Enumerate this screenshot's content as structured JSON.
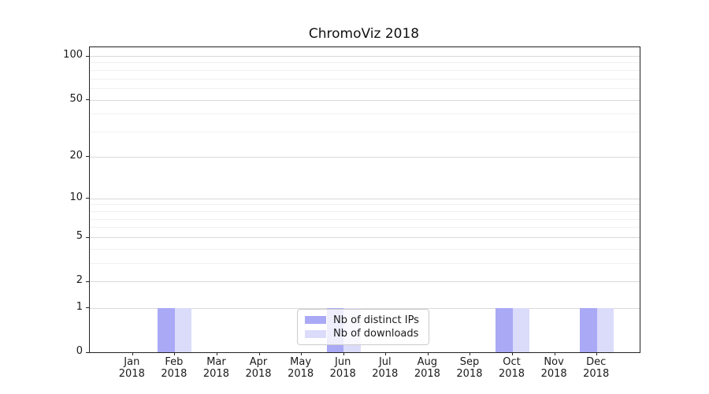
{
  "chart_data": {
    "type": "bar",
    "title": "ChromoViz 2018",
    "yscale": "log1p",
    "categories": [
      "Jan",
      "Feb",
      "Mar",
      "Apr",
      "May",
      "Jun",
      "Jul",
      "Aug",
      "Sep",
      "Oct",
      "Nov",
      "Dec"
    ],
    "x_year": "2018",
    "series": [
      {
        "name": "Nb of distinct IPs",
        "color": "#a9a9f5",
        "values": [
          0,
          1,
          0,
          0,
          0,
          1,
          0,
          0,
          0,
          1,
          0,
          1
        ]
      },
      {
        "name": "Nb of downloads",
        "color": "#dbdbfa",
        "values": [
          0,
          1,
          0,
          0,
          0,
          1,
          0,
          0,
          0,
          1,
          0,
          1
        ]
      }
    ],
    "y_axis": {
      "major_ticks": [
        0,
        1,
        2,
        5,
        10,
        20,
        50,
        100
      ],
      "minor_ticks": [
        3,
        4,
        6,
        7,
        8,
        9,
        30,
        40,
        60,
        70,
        80,
        90
      ],
      "ylim": [
        0,
        114
      ]
    },
    "grid": {
      "major_color": "#d9d9d9",
      "minor_color": "#f0f0f0"
    },
    "legend": {
      "position": "lower center"
    }
  }
}
